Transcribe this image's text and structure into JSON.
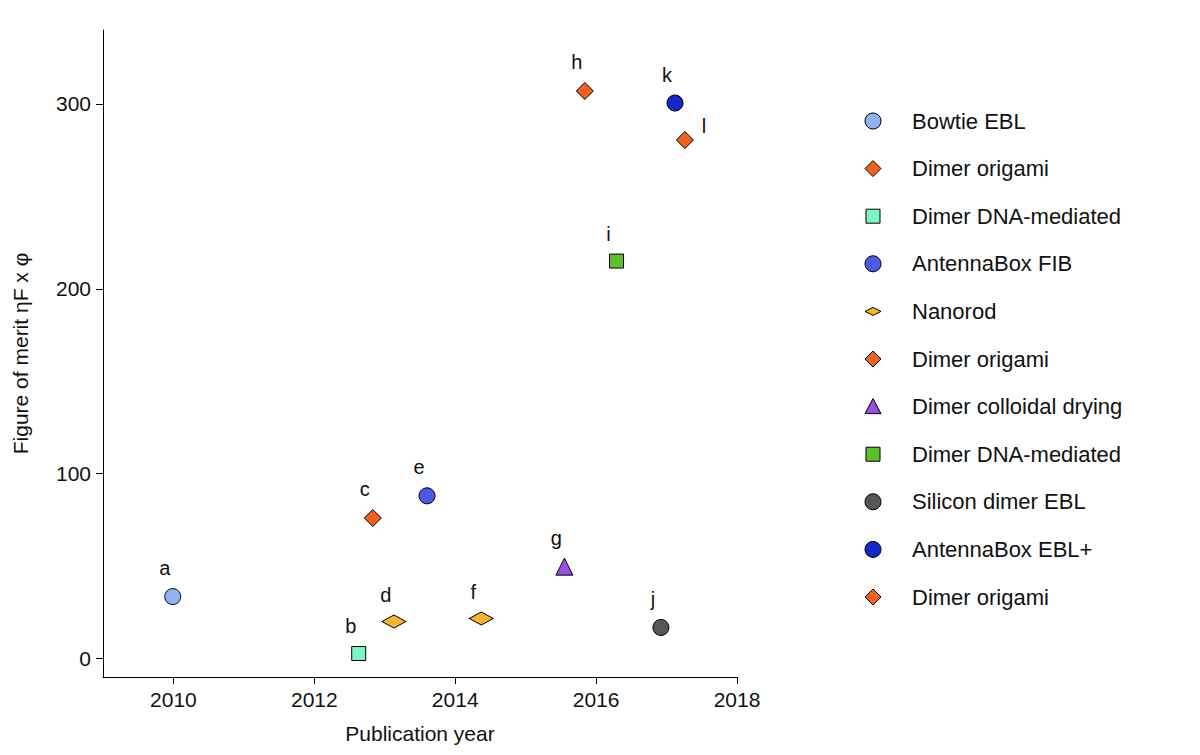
{
  "chart_data": {
    "type": "scatter",
    "x_label": "Publication year",
    "y_label": "Figure of merit ηF x φ",
    "xlim": [
      2009,
      2018
    ],
    "xticks": [
      2010,
      2012,
      2014,
      2016,
      2018
    ],
    "ylim": [
      -10,
      340
    ],
    "yticks": [
      0,
      100,
      200,
      300
    ],
    "grid": false,
    "legend": "right",
    "series": [
      {
        "name": "Bowtie EBL",
        "color": "#8fb3f3",
        "marker": "circle",
        "x": [
          2009.99
        ],
        "values": [
          33.5
        ],
        "point_labels": [
          "a"
        ]
      },
      {
        "name": "Dimer origami",
        "color": "#f2601f",
        "marker": "diamond",
        "x": [
          2012.83
        ],
        "values": [
          76
        ],
        "point_labels": [
          "c"
        ]
      },
      {
        "name": "Dimer DNA-mediated",
        "color": "#7df5c6",
        "marker": "square",
        "x": [
          2012.63
        ],
        "values": [
          2.7
        ],
        "point_labels": [
          "b"
        ]
      },
      {
        "name": "AntennaBox FIB",
        "color": "#4a5ce6",
        "marker": "circle",
        "x": [
          2013.6
        ],
        "values": [
          88
        ],
        "point_labels": [
          "e"
        ]
      },
      {
        "name": "Nanorod",
        "color": "#f7b52e",
        "marker": "wide_diamond",
        "x": [
          2013.13,
          2014.37
        ],
        "values": [
          20,
          21.6
        ],
        "point_labels": [
          "d",
          "f"
        ]
      },
      {
        "name": "Dimer origami",
        "color": "#f2601f",
        "marker": "diamond",
        "x": [
          2015.84
        ],
        "values": [
          307
        ],
        "point_labels": [
          "h"
        ]
      },
      {
        "name": "Dimer colloidal drying",
        "color": "#9a4ee0",
        "marker": "triangle",
        "x": [
          2015.55
        ],
        "values": [
          49.7
        ],
        "point_labels": [
          "g"
        ]
      },
      {
        "name": "Dimer DNA-mediated",
        "color": "#5fbf2a",
        "marker": "square",
        "x": [
          2016.29
        ],
        "values": [
          215
        ],
        "point_labels": [
          "i"
        ]
      },
      {
        "name": "Silicon dimer EBL",
        "color": "#575757",
        "marker": "circle",
        "x": [
          2016.92
        ],
        "values": [
          16.8
        ],
        "point_labels": [
          "j"
        ]
      },
      {
        "name": "AntennaBox EBL+",
        "color": "#1428c8",
        "marker": "circle",
        "x": [
          2017.12
        ],
        "values": [
          300.5
        ],
        "point_labels": [
          "k"
        ]
      },
      {
        "name": "Dimer origami",
        "color": "#f2601f",
        "marker": "diamond",
        "x": [
          2017.26
        ],
        "values": [
          280.5
        ],
        "point_labels": [
          "l"
        ]
      }
    ]
  }
}
